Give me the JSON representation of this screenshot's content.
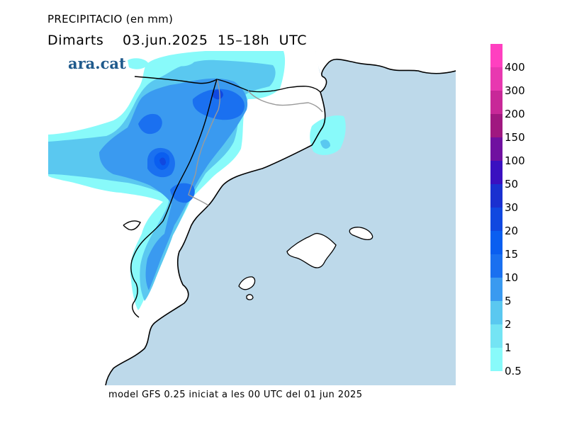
{
  "title": {
    "line1": "PRECIPITACIO (en mm)",
    "line2": "Dimarts    03.jun.2025  15–18h  UTC"
  },
  "logo": "ara.cat",
  "caption": "model GFS 0.25 iniciat a les 00 UTC del 01 jun 2025",
  "legend": {
    "levels": [
      {
        "label": "400",
        "color": "#ff40c0"
      },
      {
        "label": "300",
        "color": "#e838b0"
      },
      {
        "label": "200",
        "color": "#c82898"
      },
      {
        "label": "150",
        "color": "#a01880"
      },
      {
        "label": "100",
        "color": "#7010a0"
      },
      {
        "label": "50",
        "color": "#3a10c0"
      },
      {
        "label": "30",
        "color": "#1a30d0"
      },
      {
        "label": "20",
        "color": "#1048e0"
      },
      {
        "label": "15",
        "color": "#0a5ef0"
      },
      {
        "label": "10",
        "color": "#1a70f0"
      },
      {
        "label": "5",
        "color": "#3a9af0"
      },
      {
        "label": "2",
        "color": "#5ac8f0"
      },
      {
        "label": "1",
        "color": "#74e4f4"
      },
      {
        "label": "0.5",
        "color": "#88fafa"
      }
    ]
  },
  "map_colors": {
    "sea": "#bdd9ea",
    "land": "#ffffff",
    "coast": "#000000",
    "border": "#9a9a9a"
  }
}
